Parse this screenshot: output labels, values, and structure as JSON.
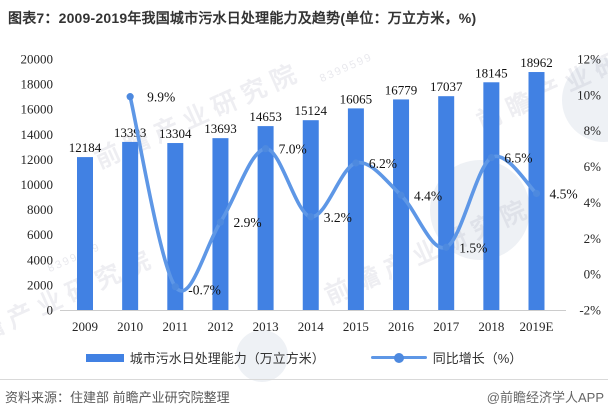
{
  "title": "图表7：2009-2019年我国城市污水日处理能力及趋势(单位：万立方米，%)",
  "chart_data": {
    "type": "bar+line",
    "title": "图表7：2009-2019年我国城市污水日处理能力及趋势(单位：万立方米，%)",
    "categories": [
      "2009",
      "2010",
      "2011",
      "2012",
      "2013",
      "2014",
      "2015",
      "2016",
      "2017",
      "2018",
      "2019E"
    ],
    "series": [
      {
        "name": "城市污水日处理能力（万立方米）",
        "type": "bar",
        "color": "#4181E3",
        "values": [
          12184,
          13393,
          13304,
          13693,
          14653,
          15124,
          16065,
          16779,
          17037,
          18145,
          18962
        ],
        "value_labels": [
          "12184",
          "13393",
          "13304",
          "13693",
          "14653",
          "15124",
          "16065",
          "16779",
          "17037",
          "18145",
          "18962"
        ]
      },
      {
        "name": "同比增长（%）",
        "type": "line",
        "color": "#5E97E6",
        "marker_color": "#4D89DF",
        "values": [
          null,
          9.9,
          -0.7,
          2.9,
          7.0,
          3.2,
          6.2,
          4.4,
          1.5,
          6.5,
          4.5
        ],
        "point_labels": [
          null,
          "9.9%",
          "-0.7%",
          "2.9%",
          "7.0%",
          "3.2%",
          "6.2%",
          "4.4%",
          "1.5%",
          "6.5%",
          "4.5%"
        ]
      }
    ],
    "y_left": {
      "min": 0,
      "max": 20000,
      "step": 2000,
      "tick_labels": [
        "0",
        "2000",
        "4000",
        "6000",
        "8000",
        "10000",
        "12000",
        "14000",
        "16000",
        "18000",
        "20000"
      ]
    },
    "y_right": {
      "min": -2,
      "max": 12,
      "step": 2,
      "tick_labels": [
        "-2%",
        "0%",
        "2%",
        "4%",
        "6%",
        "8%",
        "10%",
        "12%"
      ]
    },
    "grid": false,
    "legend_position": "bottom"
  },
  "legend": {
    "items": [
      {
        "label": "城市污水日处理能力（万立方米）",
        "type": "bar"
      },
      {
        "label": "同比增长（%）",
        "type": "line"
      }
    ]
  },
  "footer": {
    "source": "资料来源：住建部 前瞻产业研究院整理",
    "brand": "@前瞻经济学人APP"
  },
  "watermark": {
    "brand_text": "前瞻产业研究院",
    "code_text": "8399599"
  }
}
